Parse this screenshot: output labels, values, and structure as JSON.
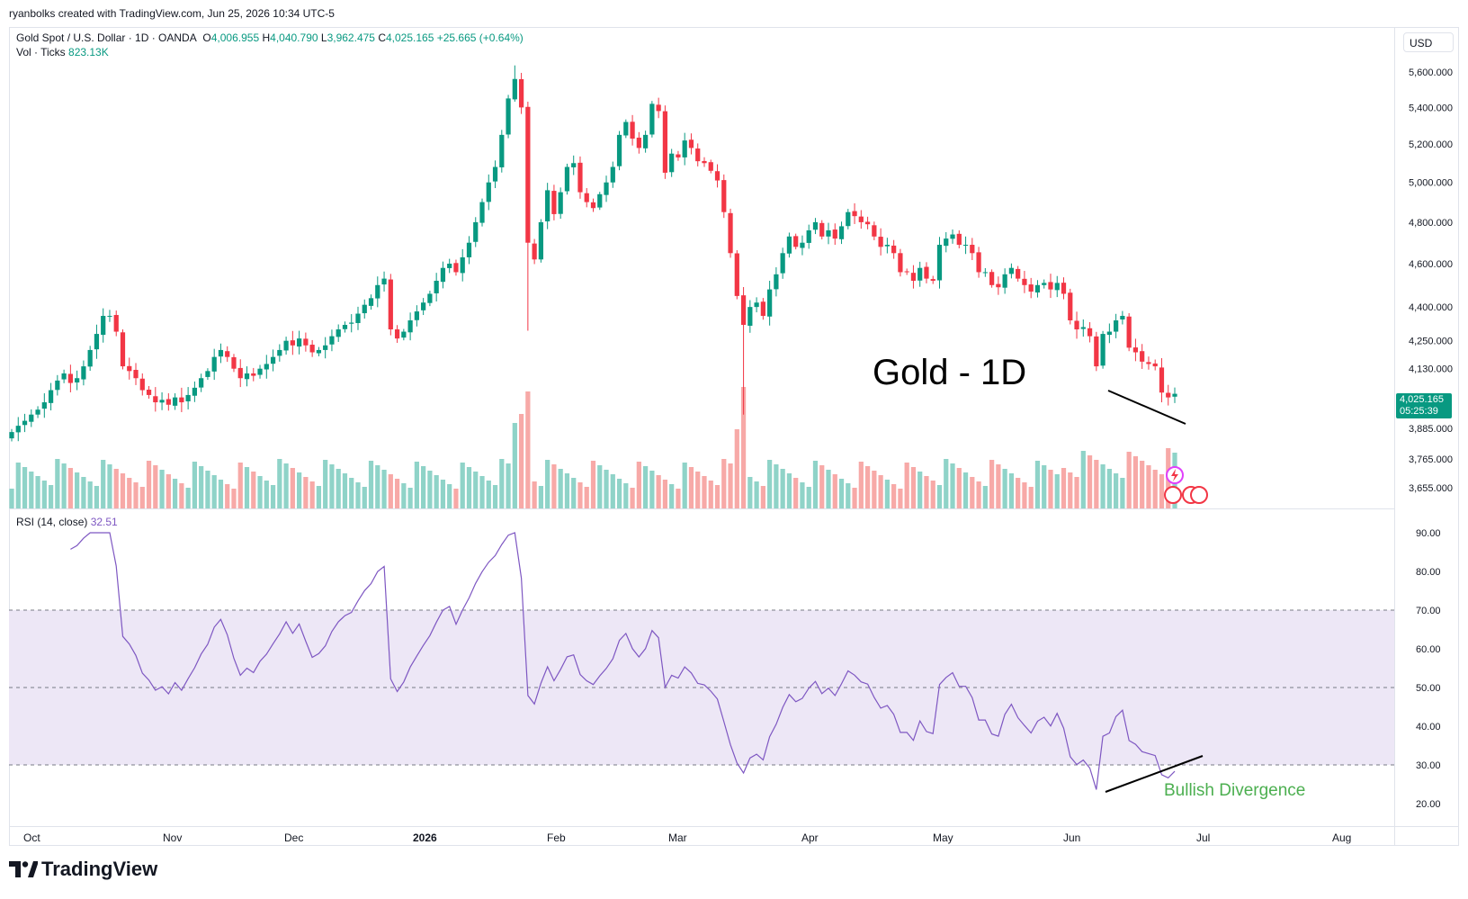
{
  "header": {
    "credit": "ryanbolks created with TradingView.com, Jun 25, 2026 10:34 UTC-5"
  },
  "legend": {
    "symbol": "Gold Spot / U.S. Dollar · 1D · OANDA",
    "open_label": "O",
    "open": "4,006.955",
    "high_label": "H",
    "high": "4,040.790",
    "low_label": "L",
    "low": "3,962.475",
    "close_label": "C",
    "close": "4,025.165",
    "change": "+25.665 (+0.64%)",
    "vol_label": "Vol · Ticks",
    "vol_value": "823.13K",
    "rsi_label": "RSI (14, close)",
    "rsi_value": "32.51"
  },
  "currency": "USD",
  "last_price": {
    "price": "4,025.165",
    "countdown": "05:25:39"
  },
  "annotations": {
    "title": "Gold - 1D",
    "signal": "Bullish Divergence"
  },
  "branding": {
    "logo_text": "TradingView",
    "logo_icon": "tradingview-logo-icon"
  },
  "colors": {
    "up": "#089981",
    "down": "#f23645",
    "vol_up": "#8fd3c8",
    "vol_down": "#f7a9a7",
    "rsi": "#7e57c2",
    "rsi_band": "#ede7f6",
    "divergence": "#000000",
    "signal_text": "#4caf50"
  },
  "chart_data": [
    {
      "type": "candlestick",
      "title": "Gold Spot / U.S. Dollar · 1D · OANDA",
      "x_ticks": [
        "Oct",
        "Nov",
        "Dec",
        "2026",
        "Feb",
        "Mar",
        "Apr",
        "May",
        "Jun",
        "Jul",
        "Aug"
      ],
      "y_ticks": [
        "5,600.000",
        "5,400.000",
        "5,200.000",
        "5,000.000",
        "4,800.000",
        "4,600.000",
        "4,400.000",
        "4,250.000",
        "4,130.000",
        "3,885.000",
        "3,765.000",
        "3,655.000"
      ],
      "y_scale": "log",
      "close": [
        3870,
        3895,
        3915,
        3940,
        3960,
        3990,
        4040,
        4080,
        4110,
        4070,
        4090,
        4140,
        4210,
        4280,
        4360,
        4360,
        4290,
        4140,
        4120,
        4090,
        4040,
        4020,
        3990,
        4000,
        3980,
        4010,
        3990,
        4020,
        4050,
        4090,
        4120,
        4180,
        4210,
        4180,
        4130,
        4090,
        4110,
        4100,
        4130,
        4150,
        4180,
        4210,
        4250,
        4230,
        4260,
        4230,
        4200,
        4210,
        4230,
        4270,
        4300,
        4320,
        4330,
        4370,
        4410,
        4440,
        4500,
        4530,
        4300,
        4260,
        4290,
        4340,
        4380,
        4420,
        4460,
        4520,
        4580,
        4600,
        4560,
        4630,
        4700,
        4800,
        4900,
        5000,
        5080,
        5250,
        5450,
        5560,
        5400,
        4700,
        4620,
        4800,
        4960,
        4840,
        4950,
        5080,
        5100,
        4950,
        4900,
        4870,
        4940,
        5000,
        5080,
        5250,
        5320,
        5230,
        5180,
        5250,
        5420,
        5380,
        5050,
        5150,
        5130,
        5220,
        5180,
        5110,
        5100,
        5060,
        5010,
        4850,
        4650,
        4450,
        4320,
        4400,
        4420,
        4360,
        4480,
        4550,
        4650,
        4730,
        4680,
        4700,
        4760,
        4800,
        4730,
        4760,
        4720,
        4780,
        4850,
        4830,
        4800,
        4790,
        4730,
        4680,
        4690,
        4650,
        4560,
        4560,
        4520,
        4580,
        4530,
        4520,
        4690,
        4720,
        4740,
        4690,
        4690,
        4650,
        4560,
        4560,
        4500,
        4490,
        4550,
        4580,
        4530,
        4500,
        4470,
        4500,
        4510,
        4480,
        4510,
        4460,
        4340,
        4300,
        4310,
        4270,
        4140,
        4280,
        4290,
        4340,
        4360,
        4220,
        4200,
        4160,
        4150,
        4140,
        4030,
        4010,
        4025
      ],
      "volume_note": "Vol · Ticks 823.13K"
    },
    {
      "type": "line",
      "title": "RSI (14, close)",
      "y_ticks": [
        "90.00",
        "80.00",
        "70.00",
        "60.00",
        "50.00",
        "40.00",
        "30.00",
        "20.00"
      ],
      "ylim": [
        20,
        90
      ],
      "bands": [
        30,
        50,
        70
      ],
      "last_value": "32.51"
    }
  ]
}
